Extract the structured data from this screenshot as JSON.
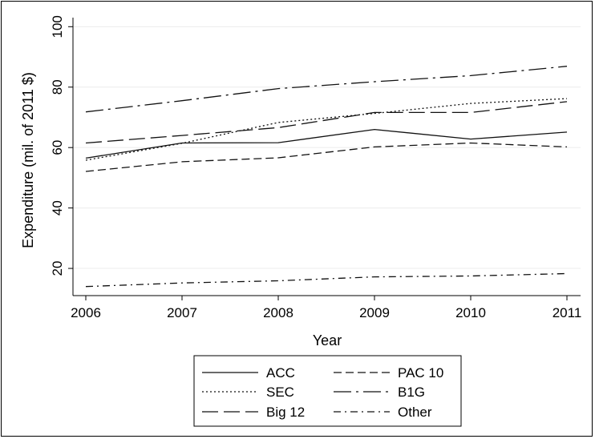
{
  "chart_data": {
    "type": "line",
    "xlabel": "Year",
    "ylabel": "Expenditure (mil. of 2011 $)",
    "x": [
      2006,
      2007,
      2008,
      2009,
      2010,
      2011
    ],
    "xlim": [
      2006,
      2011
    ],
    "ylim": [
      11,
      103
    ],
    "yticks": [
      20,
      40,
      60,
      80,
      100
    ],
    "xticks": [
      2006,
      2007,
      2008,
      2009,
      2010,
      2011
    ],
    "grid": "horizontal",
    "legend_position": "bottom",
    "series": [
      {
        "name": "ACC",
        "dash": "solid",
        "values": [
          56.5,
          61.5,
          61.6,
          66.0,
          62.8,
          65.1
        ]
      },
      {
        "name": "PAC 10",
        "dash": "dash",
        "values": [
          52.1,
          55.3,
          56.6,
          60.2,
          61.5,
          60.2
        ]
      },
      {
        "name": "SEC",
        "dash": "dot",
        "values": [
          55.8,
          61.4,
          68.3,
          71.3,
          74.6,
          76.2
        ]
      },
      {
        "name": "B1G",
        "dash": "longdashdot",
        "values": [
          71.8,
          75.5,
          79.5,
          81.8,
          83.8,
          86.9
        ]
      },
      {
        "name": "Big 12",
        "dash": "longdash",
        "values": [
          61.5,
          64.0,
          66.6,
          71.6,
          71.6,
          75.2
        ]
      },
      {
        "name": "Other",
        "dash": "dashdot",
        "values": [
          14.0,
          15.2,
          15.9,
          17.2,
          17.5,
          18.3
        ]
      }
    ]
  }
}
